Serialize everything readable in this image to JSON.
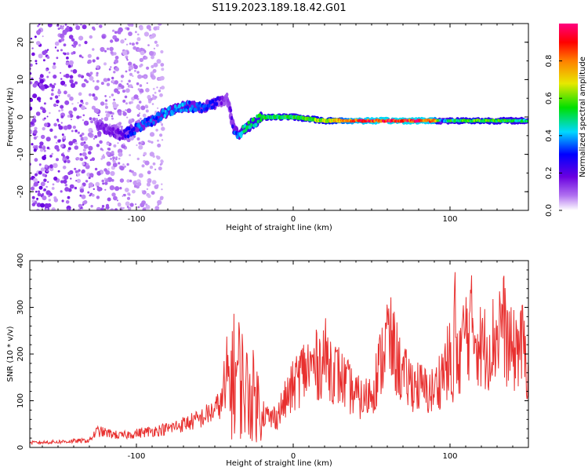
{
  "title": "S119.2023.189.18.42.G01",
  "colors": {
    "snr_line": "#e8302f",
    "frame": "#000000",
    "background": "#ffffff"
  },
  "chart_data": [
    {
      "type": "heatmap",
      "title": "S119.2023.189.18.42.G01",
      "xlabel": "Height of straight line (km)",
      "ylabel": "Frequency (Hz)",
      "xlim": [
        -168,
        150
      ],
      "ylim": [
        -25,
        25
      ],
      "xticks": [
        -100,
        0,
        100
      ],
      "yticks": [
        -20,
        -10,
        0,
        10,
        20
      ],
      "colorbar": {
        "label": "Normalized spectral amplitude",
        "range": [
          0.0,
          1.0
        ],
        "ticks": [
          0.0,
          0.2,
          0.4,
          0.6,
          0.8
        ],
        "colormap": "rainbow (white-violet-blue-cyan-green-yellow-red-magenta)"
      },
      "ridge": {
        "description": "dominant frequency ridge (Hz) vs height (km)",
        "x": [
          -125,
          -110,
          -100,
          -90,
          -80,
          -70,
          -60,
          -50,
          -42,
          -38,
          -35,
          -30,
          -20,
          0,
          20,
          40,
          60,
          80,
          90,
          95,
          100,
          120,
          150
        ],
        "y": [
          -2,
          -5,
          -3,
          -1,
          1.5,
          3,
          2.5,
          3.5,
          5,
          -3,
          -5,
          -3,
          0,
          0,
          -1,
          -1,
          -1,
          -1,
          -1,
          -1,
          -1,
          -1,
          -1
        ],
        "amplitude": [
          0.15,
          0.2,
          0.35,
          0.35,
          0.4,
          0.4,
          0.35,
          0.3,
          0.1,
          0.3,
          0.4,
          0.5,
          0.55,
          0.55,
          0.65,
          0.9,
          0.95,
          0.95,
          0.9,
          0.3,
          0.55,
          0.6,
          0.5
        ]
      }
    },
    {
      "type": "line",
      "xlabel": "Height of straight line (km)",
      "ylabel": "SNR (10 * v/v)",
      "xlim": [
        -168,
        150
      ],
      "ylim": [
        0,
        400
      ],
      "xticks": [
        -100,
        0,
        100
      ],
      "yticks": [
        0,
        100,
        200,
        300,
        400
      ],
      "grid": false,
      "series": [
        {
          "x": [
            -168,
            -150,
            -130,
            -125,
            -110,
            -100,
            -80,
            -60,
            -50,
            -45,
            -40,
            -35,
            -30,
            -25,
            -20,
            -15,
            -10,
            -5,
            0,
            5,
            10,
            15,
            20,
            25,
            30,
            35,
            40,
            45,
            50,
            55,
            60,
            65,
            70,
            75,
            80,
            85,
            90,
            95,
            100,
            102,
            103,
            104,
            106,
            110,
            115,
            120,
            125,
            130,
            133,
            136,
            140,
            145,
            150
          ],
          "y": [
            10,
            12,
            15,
            35,
            25,
            30,
            40,
            60,
            80,
            100,
            150,
            160,
            120,
            110,
            80,
            60,
            70,
            100,
            130,
            160,
            170,
            175,
            195,
            170,
            150,
            130,
            110,
            100,
            120,
            170,
            240,
            200,
            150,
            140,
            130,
            120,
            120,
            160,
            190,
            80,
            380,
            160,
            200,
            250,
            260,
            210,
            220,
            240,
            285,
            230,
            200,
            230,
            170
          ]
        }
      ]
    }
  ]
}
